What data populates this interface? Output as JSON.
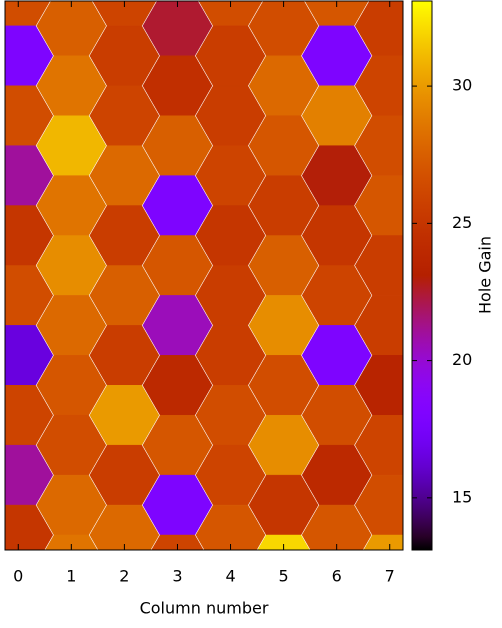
{
  "chart_data": {
    "type": "hexmap",
    "xlabel": "Column number",
    "colorbar_label": "Hole Gain",
    "xlim": [
      -0.25,
      7.25
    ],
    "xticks": [
      0,
      1,
      2,
      3,
      4,
      5,
      6,
      7
    ],
    "ylim": [
      -0.83,
      17.5
    ],
    "y_inverted": true,
    "cblim": [
      13.1,
      33.1
    ],
    "cbticks": [
      15,
      20,
      25,
      30
    ],
    "palette": "gnuplot",
    "series": [
      {
        "x": 0,
        "y": [
          -1,
          1,
          3,
          5,
          7,
          9,
          11,
          13,
          15,
          17
        ],
        "values": [
          26.5,
          18,
          26.5,
          21,
          25,
          26.5,
          16.5,
          26,
          21,
          25
        ]
      },
      {
        "x": 1,
        "y": [
          0,
          2,
          4,
          6,
          8,
          10,
          12,
          14,
          16,
          18
        ],
        "values": [
          27.5,
          28.5,
          31,
          28.5,
          29.5,
          28,
          27,
          26.5,
          28,
          28.5
        ]
      },
      {
        "x": 2,
        "y": [
          -1,
          1,
          3,
          5,
          7,
          9,
          11,
          13,
          15,
          17
        ],
        "values": [
          26,
          25.5,
          26,
          28,
          25.5,
          27.5,
          25.5,
          30,
          25.5,
          28
        ]
      },
      {
        "x": 3,
        "y": [
          0,
          2,
          4,
          6,
          8,
          10,
          12,
          14,
          16,
          18
        ],
        "values": [
          22.5,
          24.5,
          27.5,
          18,
          27,
          20.5,
          24,
          27,
          18,
          26
        ]
      },
      {
        "x": 4,
        "y": [
          -1,
          1,
          3,
          5,
          7,
          9,
          11,
          13,
          15,
          17
        ],
        "values": [
          26.5,
          25.5,
          25.5,
          26,
          25,
          25.5,
          25.5,
          26.5,
          26,
          27
        ]
      },
      {
        "x": 5,
        "y": [
          0,
          2,
          4,
          6,
          8,
          10,
          12,
          14,
          16,
          18
        ],
        "values": [
          26.5,
          28,
          27,
          25.5,
          27.5,
          29.5,
          26.5,
          29.5,
          25,
          32
        ]
      },
      {
        "x": 6,
        "y": [
          -1,
          1,
          3,
          5,
          7,
          9,
          11,
          13,
          15,
          17
        ],
        "values": [
          27,
          18,
          29,
          23,
          25,
          26,
          18,
          26.5,
          24,
          27
        ]
      },
      {
        "x": 7,
        "y": [
          0,
          2,
          4,
          6,
          8,
          10,
          12,
          14,
          16,
          18
        ],
        "values": [
          25.5,
          26,
          26.5,
          27,
          25.5,
          25.5,
          23.5,
          26,
          26.5,
          30
        ]
      }
    ]
  }
}
